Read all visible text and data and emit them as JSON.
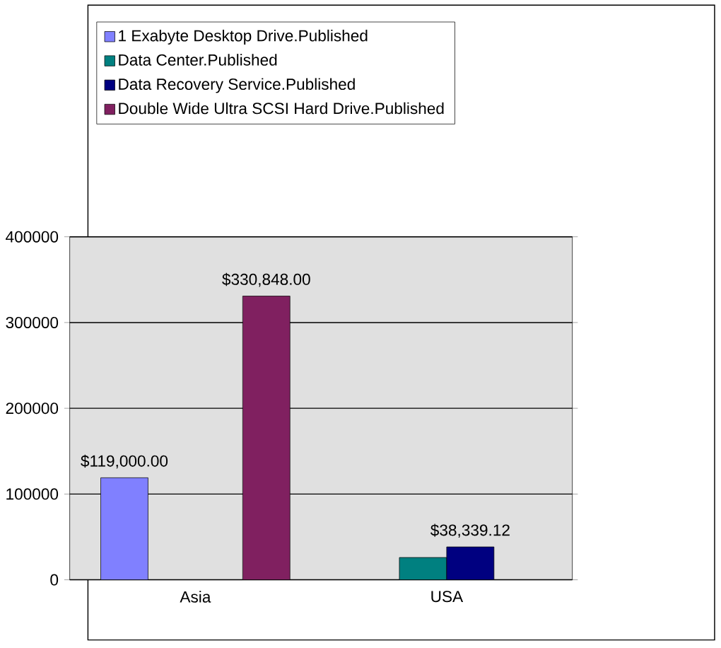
{
  "chart_data": {
    "type": "bar",
    "categories": [
      "Asia",
      "USA"
    ],
    "series": [
      {
        "name": "1 Exabyte Desktop Drive.Published",
        "color": "#8080ff",
        "values": [
          119000,
          null
        ],
        "value_labels": [
          "$119,000.00",
          null
        ]
      },
      {
        "name": "Data Center.Published",
        "color": "#008080",
        "values": [
          null,
          26000
        ],
        "value_labels": [
          null,
          null
        ]
      },
      {
        "name": "Data Recovery Service.Published",
        "color": "#000080",
        "values": [
          null,
          38339.12
        ],
        "value_labels": [
          null,
          "$38,339.12"
        ]
      },
      {
        "name": "Double Wide Ultra SCSI Hard Drive.Published",
        "color": "#802060",
        "values": [
          330848,
          null
        ],
        "value_labels": [
          "$330,848.00",
          null
        ]
      }
    ],
    "ylim": [
      0,
      400000
    ],
    "yticks": [
      0,
      100000,
      200000,
      300000,
      400000
    ],
    "grid": "y",
    "legend": "top"
  }
}
